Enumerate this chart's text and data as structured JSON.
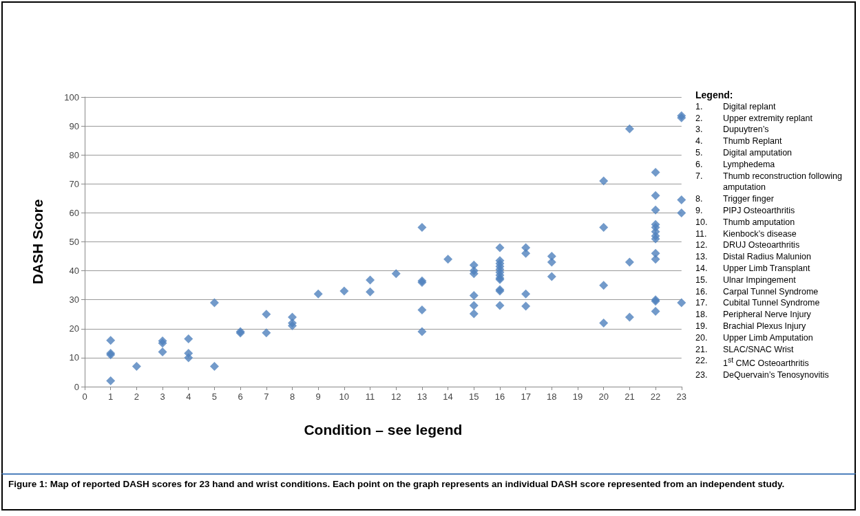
{
  "chart_data": {
    "type": "scatter",
    "xlabel": "Condition – see legend",
    "ylabel": "DASH Score",
    "x": [
      1,
      1,
      1,
      1,
      2,
      3,
      3,
      3,
      4,
      4,
      4,
      5,
      5,
      6,
      6,
      7,
      7,
      8,
      8,
      8,
      9,
      10,
      11,
      11,
      12,
      13,
      13,
      13,
      13,
      13,
      14,
      15,
      15,
      15,
      15,
      15,
      15,
      16,
      16,
      16,
      16,
      16,
      16,
      16,
      16,
      16,
      16,
      16,
      16,
      17,
      17,
      17,
      17,
      18,
      18,
      18,
      20,
      20,
      20,
      20,
      21,
      21,
      21,
      22,
      22,
      22,
      22,
      22,
      22,
      22,
      22,
      22,
      22,
      22,
      22,
      22,
      23,
      23,
      23,
      23,
      23
    ],
    "values": [
      16,
      11.5,
      11,
      2,
      7,
      15.8,
      15,
      12,
      16.5,
      11.5,
      10,
      29,
      7,
      18.5,
      19,
      25,
      18.6,
      24,
      22,
      21,
      32,
      33,
      36.8,
      32.7,
      39,
      55,
      36.5,
      36,
      26.5,
      19,
      44,
      42,
      40,
      39,
      31.5,
      28,
      25.2,
      48,
      43.5,
      42.5,
      41.5,
      40.5,
      39.5,
      38.5,
      37.5,
      37,
      33.5,
      33,
      28,
      48,
      46,
      32,
      27.8,
      45,
      43,
      38,
      71,
      55,
      35,
      22,
      89,
      43,
      24,
      74,
      66,
      61,
      56,
      55,
      53.5,
      52,
      51,
      46,
      44,
      30,
      29.5,
      26,
      93.5,
      92.8,
      64.5,
      60,
      29
    ],
    "color": "#4f81bd",
    "marker": "diamond",
    "grid": "y",
    "xlim": [
      0,
      23
    ],
    "xticks": [
      0,
      1,
      2,
      3,
      4,
      5,
      6,
      7,
      8,
      9,
      10,
      11,
      12,
      13,
      14,
      15,
      16,
      17,
      18,
      19,
      20,
      21,
      22,
      23
    ],
    "ylim": [
      0,
      100
    ],
    "yticks": [
      0,
      10,
      20,
      30,
      40,
      50,
      60,
      70,
      80,
      90,
      100
    ],
    "annotations": [
      "Legend:",
      "1. Digital replant",
      "2. Upper extremity replant",
      "3. Dupuytren’s",
      "4. Thumb Replant",
      "5. Digital amputation",
      "6. Lymphedema",
      "7. Thumb reconstruction following amputation",
      "8. Trigger finger",
      "9. PIPJ Osteoarthritis",
      "10. Thumb amputation",
      "11. Kienbock’s disease",
      "12. DRUJ Osteoarthritis",
      "13. Distal Radius Malunion",
      "14. Upper Limb Transplant",
      "15. Ulnar Impingement",
      "16. Carpal Tunnel Syndrome",
      "17. Cubital Tunnel Syndrome",
      "18. Peripheral Nerve Injury",
      "19. Brachial Plexus Injury",
      "20. Upper Limb Amputation",
      "21. SLAC/SNAC Wrist",
      "22. 1$^{st}$ CMC Osteoarthritis",
      "23. DeQuervain’s Tenosynovitis",
      "Figure 1:  Map of reported DASH scores for 23 hand and wrist conditions.  Each point on the graph represents an individual DASH score represented from an independent study."
    ]
  }
}
